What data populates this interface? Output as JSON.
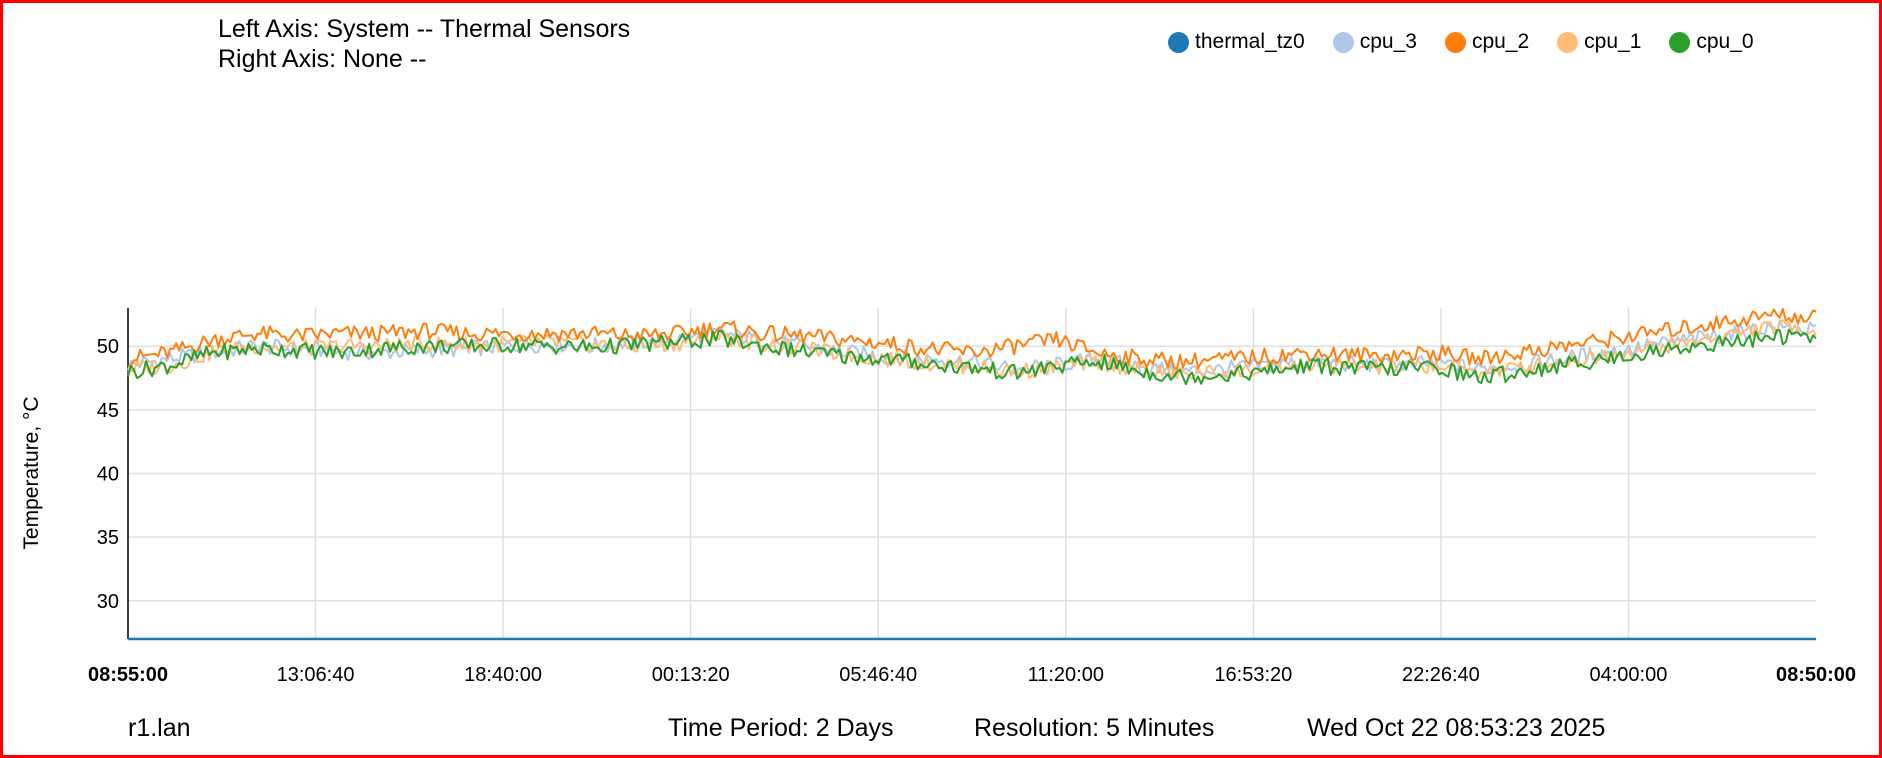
{
  "header": {
    "left_axis": "Left Axis: System -- Thermal Sensors",
    "right_axis": "Right Axis: None --"
  },
  "footer": {
    "host": "r1.lan",
    "period": "Time Period: 2 Days",
    "resolution": "Resolution: 5 Minutes",
    "timestamp": "Wed Oct 22 08:53:23 2025"
  },
  "chart_data": {
    "type": "line",
    "title": "",
    "ylabel": "Temperature, °C",
    "ylim": [
      27,
      53
    ],
    "yticks": [
      30,
      35,
      40,
      45,
      50
    ],
    "xticks": [
      "08:55:00",
      "13:06:40",
      "18:40:00",
      "00:13:20",
      "05:46:40",
      "11:20:00",
      "16:53:20",
      "22:26:40",
      "04:00:00",
      "08:50:00"
    ],
    "xtick_bold": [
      true,
      false,
      false,
      false,
      false,
      false,
      false,
      false,
      false,
      true
    ],
    "grid": true,
    "legend_position": "top-right",
    "series": [
      {
        "name": "thermal_tz0",
        "color": "#1f77b4",
        "values": [
          27,
          27,
          27,
          27,
          27,
          27,
          27,
          27,
          27,
          27,
          27,
          27,
          27,
          27,
          27,
          27,
          27,
          27,
          27,
          27,
          27,
          27,
          27,
          27,
          27,
          27,
          27,
          27,
          27,
          27,
          27,
          27,
          27,
          27,
          27,
          27,
          27,
          27,
          27,
          27,
          27
        ]
      },
      {
        "name": "cpu_3",
        "color": "#aec7e8",
        "values": [
          48.5,
          49,
          49.5,
          50,
          49.8,
          49.6,
          49.5,
          49.7,
          49.8,
          50,
          50.2,
          50,
          50.3,
          50.5,
          51,
          50.5,
          50,
          49.5,
          49.2,
          49,
          48.8,
          48.2,
          48.5,
          49,
          48.3,
          48,
          48.2,
          48.5,
          48.8,
          48.6,
          48.5,
          48.7,
          48.2,
          48.5,
          49,
          49.5,
          50,
          50.5,
          51,
          51.5,
          51.2
        ]
      },
      {
        "name": "cpu_2",
        "color": "#ff7f0e",
        "values": [
          49,
          49.5,
          50.5,
          51,
          50.8,
          51,
          51,
          51.2,
          51,
          51,
          51,
          51,
          50.8,
          51,
          51.5,
          51,
          50.8,
          50.5,
          50.2,
          49.8,
          49.5,
          50,
          50.5,
          49.5,
          49,
          48.8,
          49,
          49.2,
          49.5,
          49.3,
          49.3,
          49.5,
          49,
          49.5,
          50,
          50.5,
          51,
          51.5,
          52,
          52.5,
          52.2
        ]
      },
      {
        "name": "cpu_1",
        "color": "#ffbb78",
        "values": [
          48.2,
          48.5,
          49.5,
          50,
          49.8,
          50,
          50,
          50.2,
          50.1,
          50.2,
          50.3,
          50.1,
          50,
          50.2,
          50.8,
          50.2,
          49.8,
          49.3,
          49,
          48.7,
          48.4,
          48,
          48.3,
          48.8,
          48.1,
          47.8,
          48,
          48.2,
          48.5,
          48.4,
          48.3,
          48.5,
          48,
          48.3,
          48.8,
          49.3,
          49.8,
          50.3,
          51,
          51.5,
          51.3
        ]
      },
      {
        "name": "cpu_0",
        "color": "#2ca02c",
        "values": [
          48,
          48.5,
          49.5,
          49.8,
          49.7,
          49.5,
          49.8,
          50,
          50,
          50.1,
          50,
          49.9,
          50.1,
          50.3,
          50.6,
          50,
          49.6,
          49.2,
          49,
          48.6,
          48.3,
          47.9,
          48.4,
          48.8,
          48,
          47.6,
          47.8,
          48,
          48.5,
          48.3,
          48.2,
          48.4,
          47.5,
          48,
          48.5,
          49,
          49.5,
          50,
          50.3,
          50.8,
          50.6
        ]
      }
    ]
  }
}
